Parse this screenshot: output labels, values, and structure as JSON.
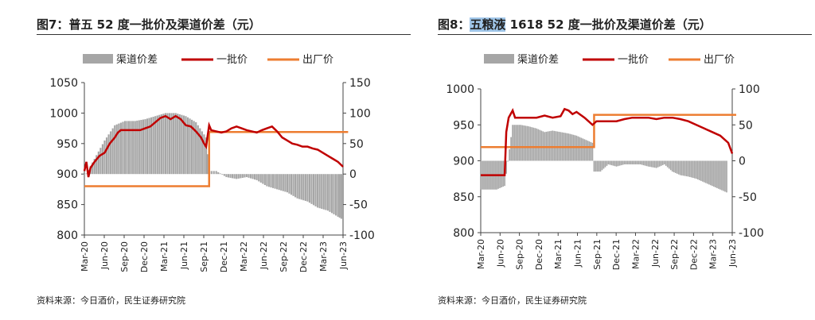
{
  "chart_data": [
    {
      "type": "bar+line",
      "title_prefix": "图7：",
      "title_brand": "普五",
      "title_suffix": " 52 度一批价及渠道价差（元）",
      "source": "资料来源：今日酒价，民生证券研究院",
      "legend": [
        "渠道价差",
        "一批价",
        "出厂价"
      ],
      "colors": {
        "spread": "#a6a6a6",
        "batch": "#c00000",
        "factory": "#ed7d31"
      },
      "x_ticks": [
        "Mar-20",
        "Jun-20",
        "Sep-20",
        "Dec-20",
        "Mar-21",
        "Jun-21",
        "Sep-21",
        "Dec-21",
        "Mar-22",
        "Jun-22",
        "Sep-22",
        "Dec-22",
        "Mar-23",
        "Jun-23"
      ],
      "ylim_left": [
        800,
        1050
      ],
      "yticks_left": [
        "1050",
        "1000",
        "950",
        "900",
        "850",
        "800"
      ],
      "ylim_right": [
        -100,
        150
      ],
      "yticks_right": [
        "150",
        "100",
        "50",
        "0",
        "-50",
        "-100"
      ],
      "batch_price": [
        [
          0,
          905
        ],
        [
          0.2,
          920
        ],
        [
          0.4,
          895
        ],
        [
          0.6,
          910
        ],
        [
          1,
          920
        ],
        [
          1.5,
          930
        ],
        [
          2,
          935
        ],
        [
          2.5,
          950
        ],
        [
          3,
          960
        ],
        [
          3.3,
          968
        ],
        [
          3.6,
          972
        ],
        [
          4,
          972
        ],
        [
          4.5,
          972
        ],
        [
          5,
          972
        ],
        [
          5.5,
          972
        ],
        [
          6,
          975
        ],
        [
          6.5,
          978
        ],
        [
          7,
          985
        ],
        [
          7.5,
          992
        ],
        [
          8,
          995
        ],
        [
          8.5,
          990
        ],
        [
          9,
          995
        ],
        [
          9.5,
          990
        ],
        [
          10,
          980
        ],
        [
          10.5,
          978
        ],
        [
          11,
          970
        ],
        [
          11.5,
          960
        ],
        [
          11.8,
          950
        ],
        [
          12,
          945
        ],
        [
          12.3,
          980
        ],
        [
          12.5,
          972
        ],
        [
          13,
          970
        ],
        [
          13.5,
          968
        ],
        [
          14,
          970
        ],
        [
          14.5,
          975
        ],
        [
          15,
          978
        ],
        [
          15.5,
          975
        ],
        [
          16,
          972
        ],
        [
          16.5,
          970
        ],
        [
          17,
          968
        ],
        [
          17.5,
          972
        ],
        [
          18,
          975
        ],
        [
          18.5,
          978
        ],
        [
          19,
          970
        ],
        [
          19.5,
          960
        ],
        [
          20,
          955
        ],
        [
          20.5,
          950
        ],
        [
          21,
          948
        ],
        [
          21.5,
          945
        ],
        [
          22,
          945
        ],
        [
          22.5,
          942
        ],
        [
          23,
          940
        ],
        [
          23.5,
          935
        ],
        [
          24,
          930
        ],
        [
          24.5,
          925
        ],
        [
          25,
          920
        ],
        [
          25.5,
          912
        ]
      ],
      "factory_price": [
        [
          0,
          880
        ],
        [
          12.3,
          880
        ],
        [
          12.3,
          969
        ],
        [
          26,
          969
        ]
      ],
      "spread": [
        [
          0,
          -5
        ],
        [
          1,
          25
        ],
        [
          2,
          55
        ],
        [
          3,
          80
        ],
        [
          4,
          87
        ],
        [
          5,
          87
        ],
        [
          6,
          90
        ],
        [
          7,
          95
        ],
        [
          8,
          100
        ],
        [
          9,
          100
        ],
        [
          10,
          95
        ],
        [
          11,
          85
        ],
        [
          12,
          60
        ],
        [
          12.3,
          5
        ],
        [
          13,
          5
        ],
        [
          14,
          -5
        ],
        [
          15,
          -8
        ],
        [
          16,
          -5
        ],
        [
          17,
          -10
        ],
        [
          18,
          -20
        ],
        [
          19,
          -25
        ],
        [
          20,
          -30
        ],
        [
          21,
          -40
        ],
        [
          22,
          -45
        ],
        [
          23,
          -55
        ],
        [
          24,
          -60
        ],
        [
          25,
          -70
        ],
        [
          25.5,
          -75
        ]
      ]
    },
    {
      "type": "bar+line",
      "title_prefix": "图8：",
      "title_brand": "五粮液",
      "title_suffix": " 1618 52 度一批价及渠道价差（元）",
      "source": "资料来源：今日酒价，民生证券研究院",
      "legend": [
        "渠道价差",
        "一批价",
        "出厂价"
      ],
      "colors": {
        "spread": "#a6a6a6",
        "batch": "#c00000",
        "factory": "#ed7d31"
      },
      "x_ticks": [
        "Mar-20",
        "Jun-20",
        "Sep-20",
        "Dec-20",
        "Mar-21",
        "Jun-21",
        "Sep-21",
        "Dec-21",
        "Mar-22",
        "Jun-22",
        "Sep-22",
        "Dec-22",
        "Mar-23",
        "Jun-23"
      ],
      "ylim_left": [
        800,
        1000
      ],
      "yticks_left": [
        "1000",
        "950",
        "900",
        "850",
        "800"
      ],
      "ylim_right": [
        -100,
        100
      ],
      "yticks_right": [
        "100",
        "50",
        "0",
        "-50",
        "-100"
      ],
      "batch_price": [
        [
          0,
          880
        ],
        [
          1,
          880
        ],
        [
          2,
          880
        ],
        [
          3,
          880
        ],
        [
          3.2,
          940
        ],
        [
          3.5,
          960
        ],
        [
          4,
          970
        ],
        [
          4.3,
          960
        ],
        [
          5,
          960
        ],
        [
          6,
          960
        ],
        [
          7,
          960
        ],
        [
          8,
          963
        ],
        [
          9,
          960
        ],
        [
          10,
          962
        ],
        [
          10.5,
          972
        ],
        [
          11,
          970
        ],
        [
          11.5,
          965
        ],
        [
          12,
          968
        ],
        [
          13,
          960
        ],
        [
          13.5,
          955
        ],
        [
          14,
          950
        ],
        [
          14.5,
          955
        ],
        [
          15,
          955
        ],
        [
          16,
          955
        ],
        [
          17,
          955
        ],
        [
          18,
          958
        ],
        [
          19,
          960
        ],
        [
          20,
          960
        ],
        [
          21,
          960
        ],
        [
          22,
          958
        ],
        [
          23,
          960
        ],
        [
          24,
          960
        ],
        [
          25,
          958
        ],
        [
          26,
          955
        ],
        [
          27,
          950
        ],
        [
          28,
          945
        ],
        [
          29,
          940
        ],
        [
          30,
          935
        ],
        [
          31,
          925
        ],
        [
          31.5,
          910
        ]
      ],
      "factory_price": [
        [
          0,
          919
        ],
        [
          14.2,
          919
        ],
        [
          14.2,
          964
        ],
        [
          32,
          964
        ]
      ],
      "spread": [
        [
          0,
          -40
        ],
        [
          1,
          -40
        ],
        [
          2,
          -40
        ],
        [
          3,
          -35
        ],
        [
          4,
          50
        ],
        [
          5,
          50
        ],
        [
          6,
          48
        ],
        [
          7,
          45
        ],
        [
          8,
          40
        ],
        [
          9,
          42
        ],
        [
          10,
          40
        ],
        [
          11,
          38
        ],
        [
          12,
          35
        ],
        [
          13,
          30
        ],
        [
          14,
          25
        ],
        [
          14.2,
          -15
        ],
        [
          15,
          -15
        ],
        [
          16,
          -5
        ],
        [
          17,
          -8
        ],
        [
          18,
          -5
        ],
        [
          19,
          -5
        ],
        [
          20,
          -5
        ],
        [
          21,
          -8
        ],
        [
          22,
          -10
        ],
        [
          23,
          -5
        ],
        [
          24,
          -15
        ],
        [
          25,
          -20
        ],
        [
          26,
          -22
        ],
        [
          27,
          -25
        ],
        [
          28,
          -30
        ],
        [
          29,
          -35
        ],
        [
          30,
          -40
        ],
        [
          31,
          -45
        ]
      ]
    }
  ]
}
